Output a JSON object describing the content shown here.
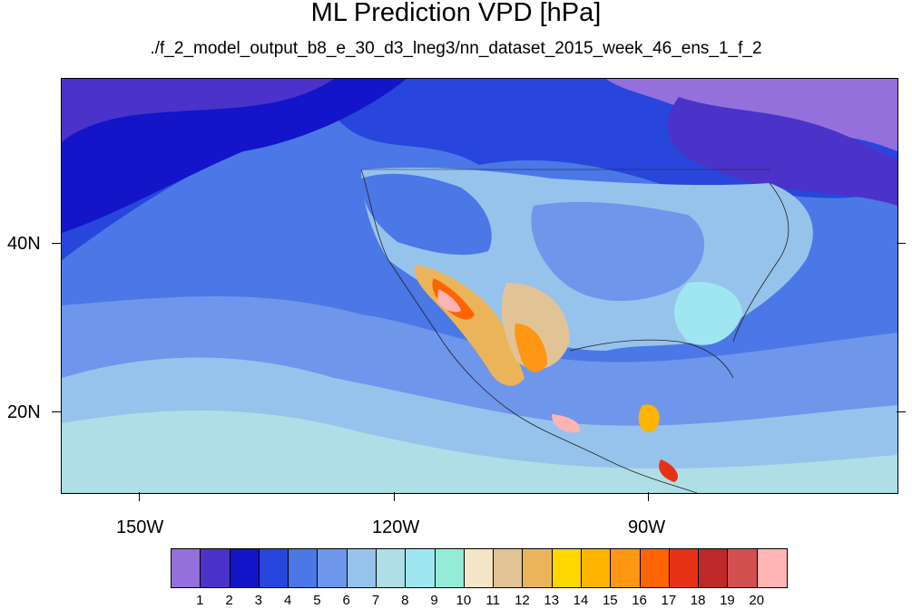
{
  "title": "ML Prediction VPD [hPa]",
  "subtitle": "./f_2_model_output_b8_e_30_d3_lneg3/nn_dataset_2015_week_46_ens_1_f_2",
  "axes": {
    "y_labels": [
      {
        "id": "lat-40",
        "text": "40N"
      },
      {
        "id": "lat-20",
        "text": "20N"
      }
    ],
    "x_labels": [
      {
        "id": "lon-150",
        "text": "150W"
      },
      {
        "id": "lon-120",
        "text": "120W"
      },
      {
        "id": "lon-90",
        "text": "90W"
      }
    ]
  },
  "colorbar": {
    "colors": [
      "#9370DB",
      "#4B32C8",
      "#1414C8",
      "#2846DC",
      "#4B78E6",
      "#6E96EB",
      "#96C3EB",
      "#AFDEE6",
      "#A0E6F0",
      "#96EBD7",
      "#F5E6C8",
      "#E1C396",
      "#EBB45A",
      "#FFD700",
      "#FFB400",
      "#FF9614",
      "#FF6400",
      "#E63214",
      "#BE2828",
      "#D25050",
      "#FFB4B4"
    ],
    "labels": [
      "1",
      "2",
      "3",
      "4",
      "5",
      "6",
      "7",
      "8",
      "9",
      "10",
      "11",
      "12",
      "13",
      "14",
      "15",
      "16",
      "17",
      "18",
      "19",
      "20"
    ]
  }
}
